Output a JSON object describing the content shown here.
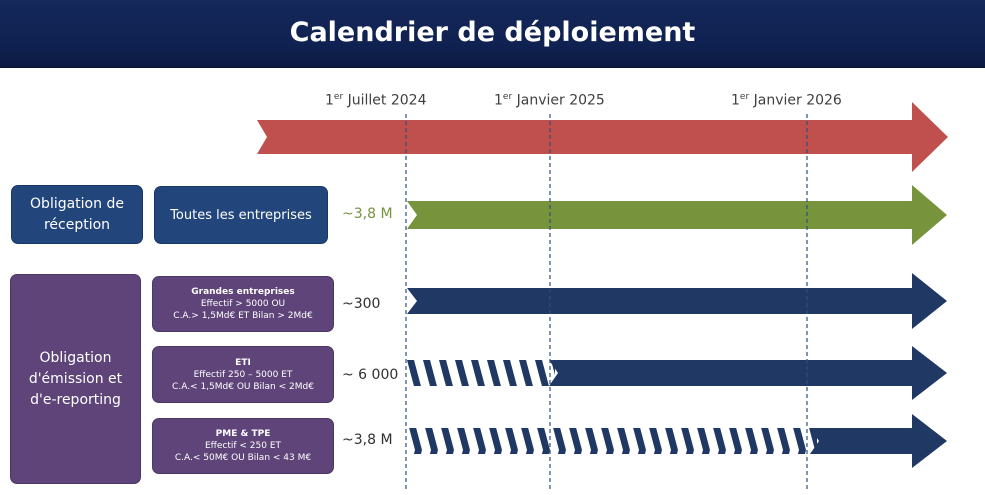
{
  "title": "Calendrier de déploiement",
  "dates": [
    {
      "sup": "er",
      "text": " Juillet 2024",
      "num": "1"
    },
    {
      "sup": "er",
      "text": " Janvier 2025",
      "num": "1"
    },
    {
      "sup": "er",
      "text": " Janvier 2026",
      "num": "1"
    }
  ],
  "reception": {
    "label": "Obligation de réception",
    "line1": "Obligation de",
    "line2": "réception",
    "target": "Toutes les entreprises",
    "count": "~3,8 M"
  },
  "emission": {
    "line1": "Obligation",
    "line2": "d'émission et",
    "line3": "d'e-reporting",
    "rows": [
      {
        "heading": "Grandes entreprises",
        "line1": "Effectif > 5000 OU",
        "line2": "C.A.> 1,5Md€ ET Bilan > 2Md€",
        "count": "~300"
      },
      {
        "heading": "ETI",
        "line1": "Effectif 250 – 5000 ET",
        "line2": "C.A.< 1,5Md€ OU Bilan < 2Md€",
        "count": "~ 6 000"
      },
      {
        "heading": "PME & TPE",
        "line1": "Effectif < 250 ET",
        "line2": "C.A.< 50M€ OU Bilan < 43 M€",
        "count": "~3,8 M"
      }
    ]
  },
  "colors": {
    "timeline_red": "#c0504d",
    "reception_green": "#77933c",
    "navy": "#1f3864",
    "blue_box": "#22467c",
    "purple_box": "#5e4478"
  }
}
